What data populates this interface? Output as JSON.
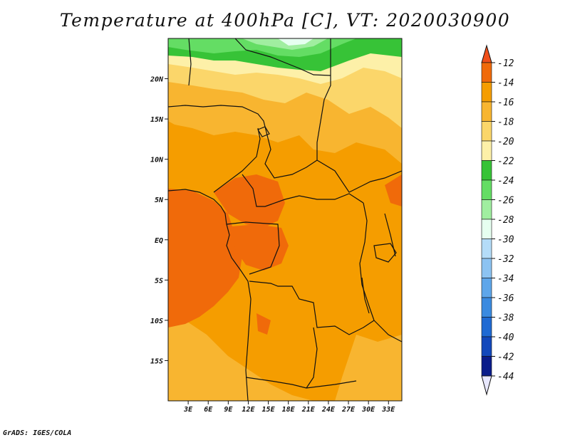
{
  "title": "Temperature at 400hPa [C], VT: 2020030900",
  "credit": "GrADS: IGES/COLA",
  "map": {
    "lon_range": [
      0,
      35
    ],
    "lat_range": [
      -20,
      25
    ],
    "lat_ticks": [
      {
        "value": 20,
        "label": "20N"
      },
      {
        "value": 15,
        "label": "15N"
      },
      {
        "value": 10,
        "label": "10N"
      },
      {
        "value": 5,
        "label": "5N"
      },
      {
        "value": 0,
        "label": "EQ"
      },
      {
        "value": -5,
        "label": "5S"
      },
      {
        "value": -10,
        "label": "10S"
      },
      {
        "value": -15,
        "label": "15S"
      }
    ],
    "lon_ticks": [
      {
        "value": 3,
        "label": "3E"
      },
      {
        "value": 6,
        "label": "6E"
      },
      {
        "value": 9,
        "label": "9E"
      },
      {
        "value": 12,
        "label": "12E"
      },
      {
        "value": 15,
        "label": "15E"
      },
      {
        "value": 18,
        "label": "18E"
      },
      {
        "value": 21,
        "label": "21E"
      },
      {
        "value": 24,
        "label": "24E"
      },
      {
        "value": 27,
        "label": "27E"
      },
      {
        "value": 30,
        "label": "30E"
      },
      {
        "value": 33,
        "label": "33E"
      }
    ]
  },
  "colorbar": {
    "labels": [
      "-12",
      "-14",
      "-16",
      "-18",
      "-20",
      "-22",
      "-24",
      "-26",
      "-28",
      "-30",
      "-32",
      "-34",
      "-36",
      "-38",
      "-40",
      "-42",
      "-44"
    ],
    "colors": [
      "#f04f1a",
      "#f06a0a",
      "#f59d00",
      "#f8b530",
      "#fbd66a",
      "#fdf0a8",
      "#37c337",
      "#64dd64",
      "#a0eea0",
      "#e6fff0",
      "#b4dcf8",
      "#8cc3f2",
      "#5ea6ea",
      "#3a8ae0",
      "#1f6ad3",
      "#1248bb",
      "#0a1c8a",
      "#e8e8ff"
    ]
  }
}
